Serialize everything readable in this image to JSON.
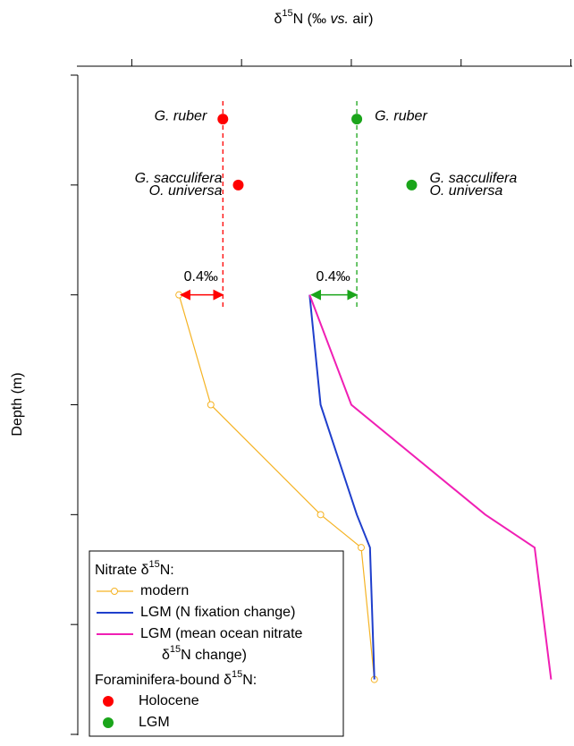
{
  "chart_data": {
    "type": "line",
    "x_label": [
      "δ15N (‰ ",
      "vs.",
      " air)"
    ],
    "y_label": "Depth (m)",
    "xlim": [
      3.5,
      8
    ],
    "xticks": [
      4,
      5,
      6,
      7,
      8
    ],
    "ylim": [
      0,
      300
    ],
    "yticks": [
      0,
      50,
      100,
      150,
      200,
      250,
      300
    ],
    "y_inverted": true,
    "groups": [
      {
        "title": "Nitrate δ15N:",
        "series": [
          {
            "name": "modern",
            "color": "#f5b324",
            "marker": "open-circle",
            "x": [
              4.43,
              4.72,
              5.72,
              6.09,
              6.21
            ],
            "y": [
              100,
              150,
              200,
              215,
              275
            ]
          },
          {
            "name": "LGM (N fixation change)",
            "color": "#1f3fcc",
            "marker": "none",
            "x": [
              5.62,
              5.72,
              6.05,
              6.17,
              6.21
            ],
            "y": [
              100,
              150,
              200,
              215,
              275
            ]
          },
          {
            "name": "LGM (mean ocean nitrate δ15N change)",
            "color": "#f01fb4",
            "marker": "none",
            "x": [
              5.62,
              6.0,
              7.22,
              7.67,
              7.82
            ],
            "y": [
              100,
              150,
              200,
              215,
              275
            ]
          }
        ]
      },
      {
        "title": "Foraminifera-bound δ15N:",
        "series": [
          {
            "name": "Holocene",
            "color": "#ff0000",
            "marker": "dot",
            "x": [
              4.83,
              4.97
            ],
            "y": [
              20,
              50
            ],
            "labels": [
              [
                "G. ruber"
              ],
              [
                "G. sacculifera",
                "O. universa"
              ]
            ],
            "offset_label": "0.4‰"
          },
          {
            "name": "LGM",
            "color": "#1aa51a",
            "marker": "dot",
            "x": [
              6.05,
              6.55
            ],
            "y": [
              20,
              50
            ],
            "labels": [
              [
                "G. ruber"
              ],
              [
                "G. sacculifera",
                "O. universa"
              ]
            ],
            "offset_label": "0.4‰"
          }
        ]
      }
    ]
  }
}
